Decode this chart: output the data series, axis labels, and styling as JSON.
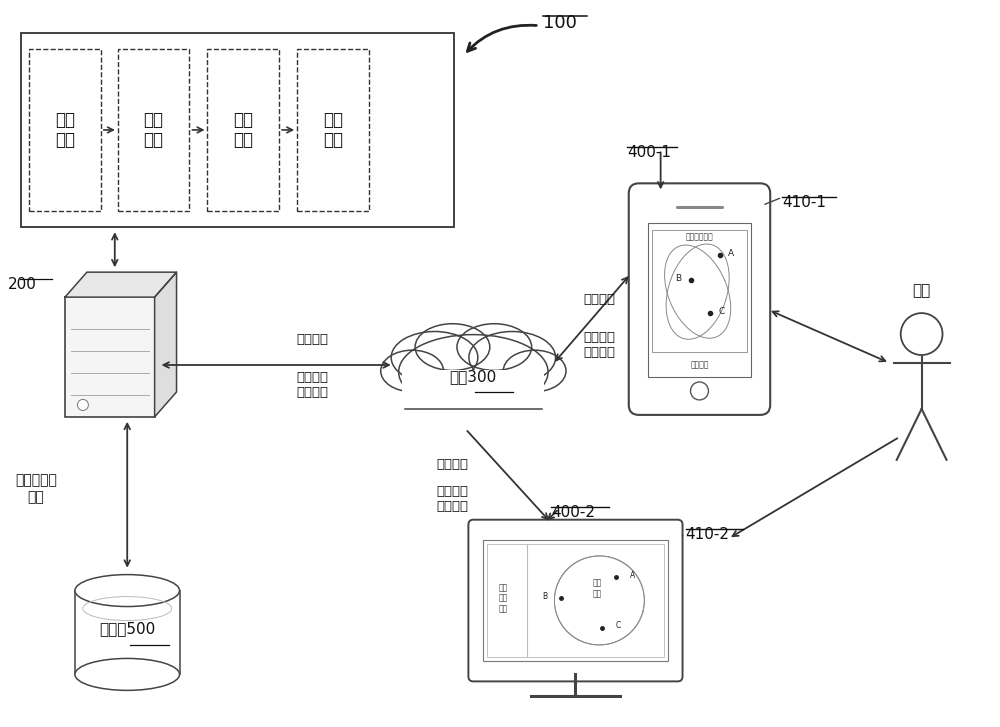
{
  "bg_color": "#ffffff",
  "title_ref": "100",
  "label_200": "200",
  "label_300": "网络300",
  "label_400_1": "400-1",
  "label_410_1": "410-1",
  "label_400_2": "400-2",
  "label_410_2": "410-2",
  "label_500": "数据库500",
  "label_user": "用户",
  "text_feature": "特征\n向量",
  "text_render_level": "渲染\n层级",
  "text_render_score": "渲染\n评分",
  "text_render_weight": "渲染\n权重",
  "text_trigger_1": "触发指令",
  "text_rendered_map_1": "渲染后的\n电子地图",
  "text_geo_info": "地理元素的\n信息",
  "text_map_ui": "电子地图界面",
  "text_e_map": "电子地图",
  "text_trigger_2": "触发指令",
  "text_rendered_map_2": "渲染后的\n电子地图",
  "text_trigger_3": "触发指令",
  "text_rendered_map_3": "渲染后的\n电子地图",
  "mon_map_left": "电子\n地图\n界面",
  "mon_map_right": "电子\n地图"
}
